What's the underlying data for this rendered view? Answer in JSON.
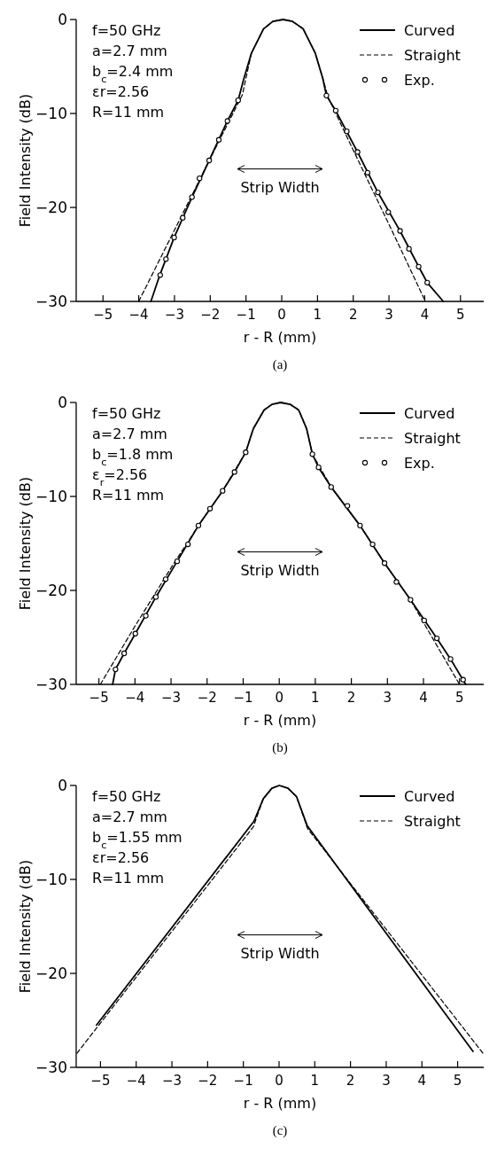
{
  "chart_data": [
    {
      "type": "line",
      "xlabel": "r - R (mm)",
      "ylabel": "Field Intensity (dB)",
      "xlim": [
        -5.75,
        5.65
      ],
      "xticks": [
        -5,
        -4,
        -3,
        -2,
        -1,
        0,
        1,
        2,
        3,
        4,
        5
      ],
      "ylim": [
        -30,
        0
      ],
      "yticks": [
        -30,
        -20,
        -10,
        0
      ],
      "grid": false,
      "legend": "top right",
      "annotations": [
        "f=50 GHz",
        "a=2.7 mm",
        "b$_{c}$=2.4 mm",
        "εr=2.56",
        "R=11 mm",
        "Strip Width",
        "(a)"
      ],
      "series": [
        {
          "name": "Curved",
          "type": "line",
          "color": "#000000",
          "line_style": "solid",
          "x": [
            -3.66,
            -3.43,
            -3.01,
            -2.51,
            -2.03,
            -1.52,
            -1.22,
            -1.06,
            -0.85,
            -0.51,
            -0.25,
            0.04,
            0.3,
            0.6,
            0.94,
            1.15,
            1.25,
            1.51,
            2.12,
            2.69,
            3.31,
            3.83,
            4.07,
            4.52
          ],
          "values": [
            -30,
            -27.4,
            -23.2,
            -18.9,
            -15.0,
            -10.8,
            -8.6,
            -6.3,
            -3.6,
            -1.0,
            -0.2,
            0,
            -0.2,
            -1.0,
            -3.6,
            -6.3,
            -8.1,
            -9.7,
            -14.1,
            -18.4,
            -22.5,
            -26.3,
            -28.0,
            -30
          ]
        },
        {
          "name": "Straight",
          "type": "line",
          "color": "#000000",
          "line_style": "dashed",
          "x": [
            -4.0,
            -3.0,
            -2.0,
            -1.1,
            -0.85,
            -0.51,
            -0.25,
            0.04,
            0.3,
            0.6,
            0.94,
            1.15,
            1.3,
            2.0,
            3.0,
            4.02
          ],
          "values": [
            -30,
            -22.4,
            -14.8,
            -8.0,
            -3.6,
            -1.0,
            -0.2,
            0,
            -0.2,
            -1.0,
            -3.6,
            -6.3,
            -8.3,
            -13.9,
            -21.8,
            -30
          ]
        },
        {
          "name": "Exp.",
          "type": "scatter",
          "color": "#000000",
          "marker": "circle",
          "x": [
            -3.4,
            -3.24,
            -3.01,
            -2.77,
            -2.51,
            -2.3,
            -2.03,
            -1.76,
            -1.52,
            -1.22,
            1.25,
            1.51,
            1.82,
            2.12,
            2.4,
            2.69,
            2.98,
            3.31,
            3.56,
            3.83,
            4.07
          ],
          "values": [
            -27.2,
            -25.5,
            -23.2,
            -21.1,
            -18.9,
            -16.9,
            -15.0,
            -12.8,
            -10.8,
            -8.6,
            -8.1,
            -9.7,
            -11.9,
            -14.1,
            -16.3,
            -18.4,
            -20.5,
            -22.5,
            -24.4,
            -26.3,
            -28.0
          ]
        }
      ]
    },
    {
      "type": "line",
      "xlabel": "r - R (mm)",
      "ylabel": "Field Intensity (dB)",
      "xlim": [
        -5.63,
        5.67
      ],
      "xticks": [
        -5,
        -4,
        -3,
        -2,
        -1,
        0,
        1,
        2,
        3,
        4,
        5
      ],
      "ylim": [
        -30,
        0
      ],
      "yticks": [
        -30,
        -20,
        -10,
        0
      ],
      "grid": false,
      "legend": "top right",
      "annotations": [
        "f=50 GHz",
        "a=2.7 mm",
        "b$_{c}$=1.8 mm",
        "ε$_{r}$=2.56",
        "R=11 mm",
        "Strip Width",
        "(b)"
      ],
      "series": [
        {
          "name": "Curved",
          "type": "line",
          "color": "#000000",
          "line_style": "solid",
          "x": [
            -4.62,
            -4.54,
            -4.3,
            -3.99,
            -3.42,
            -2.83,
            -2.24,
            -1.57,
            -1.24,
            -0.93,
            -0.72,
            -0.42,
            -0.2,
            0.04,
            0.3,
            0.54,
            0.76,
            0.92,
            1.09,
            1.44,
            2.24,
            2.92,
            3.64,
            4.37,
            4.75,
            5.17
          ],
          "values": [
            -30,
            -28.4,
            -26.7,
            -24.6,
            -20.7,
            -16.9,
            -13.1,
            -9.4,
            -7.4,
            -5.3,
            -2.8,
            -0.8,
            -0.2,
            0,
            -0.2,
            -0.8,
            -2.8,
            -5.5,
            -6.9,
            -9.0,
            -13.1,
            -17.1,
            -21.0,
            -25.1,
            -27.3,
            -30
          ]
        },
        {
          "name": "Straight",
          "type": "line",
          "color": "#000000",
          "line_style": "dashed",
          "x": [
            -4.96,
            -4.0,
            -3.0,
            -2.24,
            -1.57,
            -0.93,
            -0.72,
            -0.42,
            -0.2,
            0.04,
            0.3,
            0.54,
            0.76,
            0.92,
            1.44,
            2.24,
            2.92,
            3.64,
            4.3,
            5.0
          ],
          "values": [
            -30,
            -23.8,
            -17.6,
            -13.1,
            -9.4,
            -5.3,
            -2.8,
            -0.8,
            -0.2,
            0,
            -0.2,
            -0.8,
            -2.8,
            -5.5,
            -9.0,
            -13.1,
            -17.1,
            -21.0,
            -25.4,
            -30
          ]
        },
        {
          "name": "Exp.",
          "type": "scatter",
          "color": "#000000",
          "marker": "circle",
          "x": [
            -4.54,
            -4.3,
            -3.99,
            -3.7,
            -3.42,
            -3.15,
            -2.83,
            -2.53,
            -2.24,
            -1.92,
            -1.57,
            -1.24,
            -0.93,
            0.92,
            1.09,
            1.44,
            1.89,
            2.24,
            2.59,
            2.92,
            3.25,
            3.64,
            4.02,
            4.37,
            4.75,
            5.1
          ],
          "values": [
            -28.4,
            -26.7,
            -24.6,
            -22.7,
            -20.7,
            -18.8,
            -16.9,
            -15.1,
            -13.1,
            -11.3,
            -9.4,
            -7.4,
            -5.3,
            -5.5,
            -6.9,
            -9.0,
            -11.0,
            -13.1,
            -15.1,
            -17.1,
            -19.1,
            -21.0,
            -23.2,
            -25.1,
            -27.3,
            -29.5
          ]
        }
      ]
    },
    {
      "type": "line",
      "xlabel": "r - R (mm)",
      "ylabel": "Field Intensity (dB)",
      "xlim": [
        -5.68,
        5.73
      ],
      "xticks": [
        -5,
        -4,
        -3,
        -2,
        -1,
        0,
        1,
        2,
        3,
        4,
        5
      ],
      "ylim": [
        -30,
        0
      ],
      "yticks": [
        -30,
        -20,
        -10,
        0
      ],
      "grid": false,
      "legend": "top right",
      "annotations": [
        "f=50 GHz",
        "a=2.7 mm",
        "b$_{c}$=1.55 mm",
        "εr=2.56",
        "R=11 mm",
        "Strip Width",
        "(c)"
      ],
      "series": [
        {
          "name": "Curved",
          "type": "line",
          "color": "#000000",
          "line_style": "solid",
          "x": [
            -5.11,
            -0.7,
            -0.44,
            -0.2,
            0.01,
            0.25,
            0.49,
            0.79,
            5.43
          ],
          "values": [
            -25.5,
            -3.8,
            -1.4,
            -0.3,
            0,
            -0.3,
            -1.2,
            -4.3,
            -28.3
          ]
        },
        {
          "name": "Straight",
          "type": "line",
          "color": "#000000",
          "line_style": "dashed",
          "x": [
            -5.66,
            -0.72,
            -0.44,
            -0.2,
            0.01,
            0.25,
            0.49,
            0.8,
            5.71
          ],
          "values": [
            -28.5,
            -4.4,
            -1.4,
            -0.3,
            0,
            -0.3,
            -1.2,
            -4.6,
            -28.5
          ]
        }
      ]
    }
  ]
}
